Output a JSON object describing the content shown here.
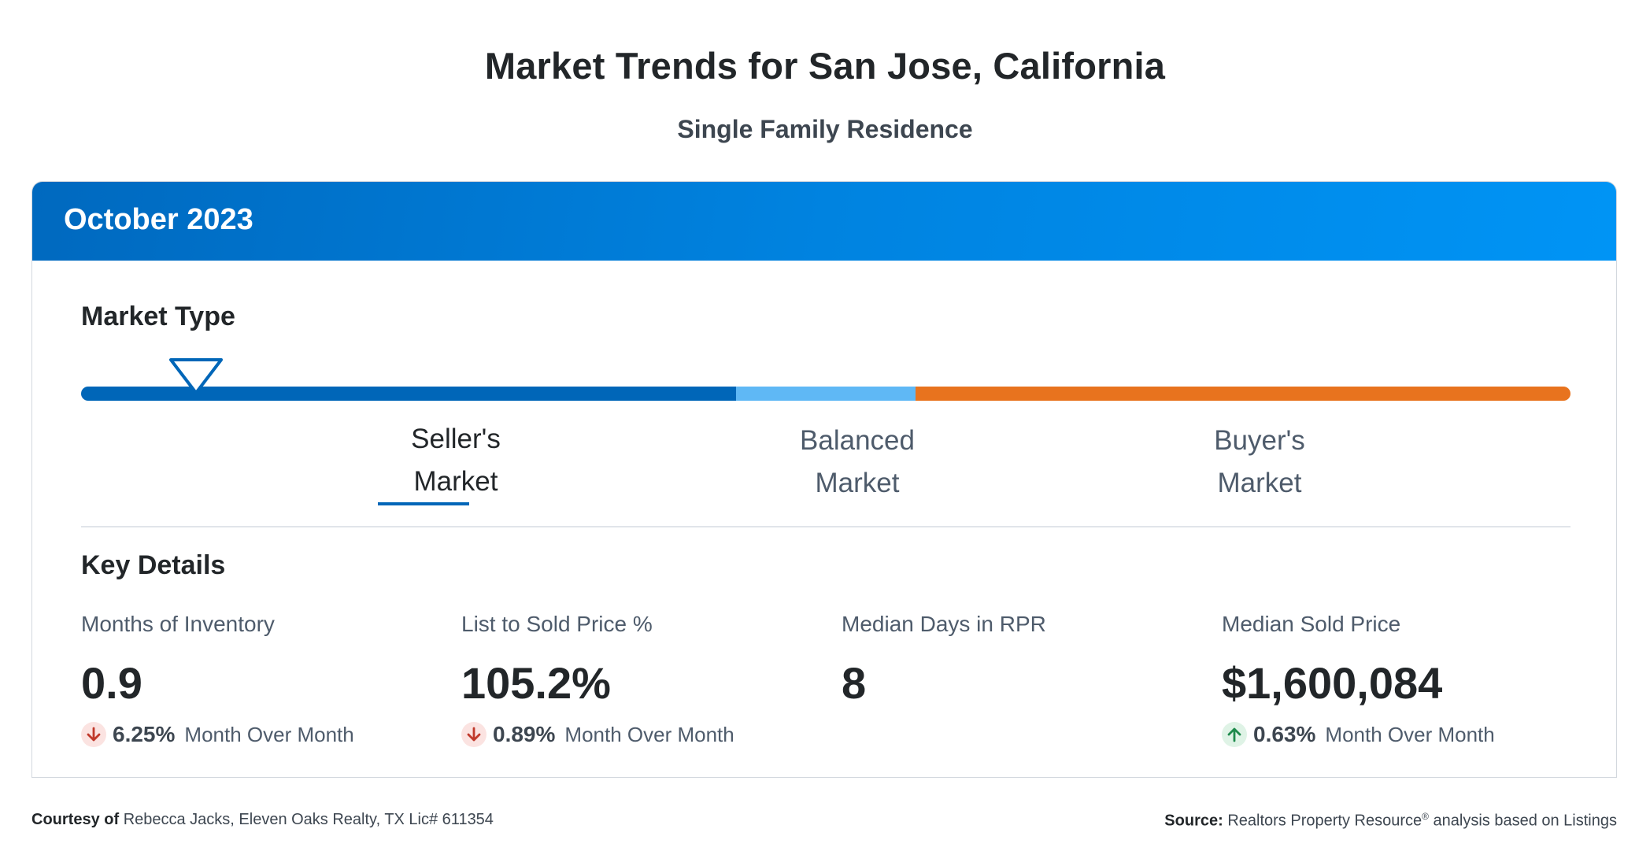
{
  "header": {
    "title": "Market Trends for San Jose, California",
    "subtitle": "Single Family Residence"
  },
  "card": {
    "period": "October 2023",
    "market_type": {
      "title": "Market Type",
      "indicator_position": 0.077,
      "segments": [
        {
          "name": "seller",
          "color": "#0066b8"
        },
        {
          "name": "balanced",
          "color": "#5fb8f5"
        },
        {
          "name": "buyer",
          "color": "#e8731e"
        }
      ],
      "labels": {
        "seller_line1": "Seller's",
        "seller_line2": "Market",
        "balanced_line1": "Balanced",
        "balanced_line2": "Market",
        "buyer_line1": "Buyer's",
        "buyer_line2": "Market"
      },
      "selected": "Seller's Market"
    },
    "key_details": {
      "title": "Key Details",
      "stats": [
        {
          "label": "Months of Inventory",
          "value": "0.9",
          "change_direction": "down",
          "change_pct": "6.25%",
          "change_text": "Month Over Month"
        },
        {
          "label": "List to Sold Price %",
          "value": "105.2%",
          "change_direction": "down",
          "change_pct": "0.89%",
          "change_text": "Month Over Month"
        },
        {
          "label": "Median Days in RPR",
          "value": "8"
        },
        {
          "label": "Median Sold Price",
          "value": "$1,600,084",
          "change_direction": "up",
          "change_pct": "0.63%",
          "change_text": "Month Over Month"
        }
      ]
    }
  },
  "footer": {
    "courtesy_label": "Courtesy of",
    "courtesy_text": "Rebecca Jacks, Eleven Oaks Realty, TX Lic# 611354",
    "source_label": "Source:",
    "source_text": "Realtors Property Resource",
    "source_reg": "®",
    "source_suffix": "analysis based on Listings"
  },
  "colors": {
    "header_gradient_start": "#0069bf",
    "header_gradient_end": "#0094f5",
    "down_arrow": "#c0392b",
    "up_arrow": "#1e8a4c"
  }
}
